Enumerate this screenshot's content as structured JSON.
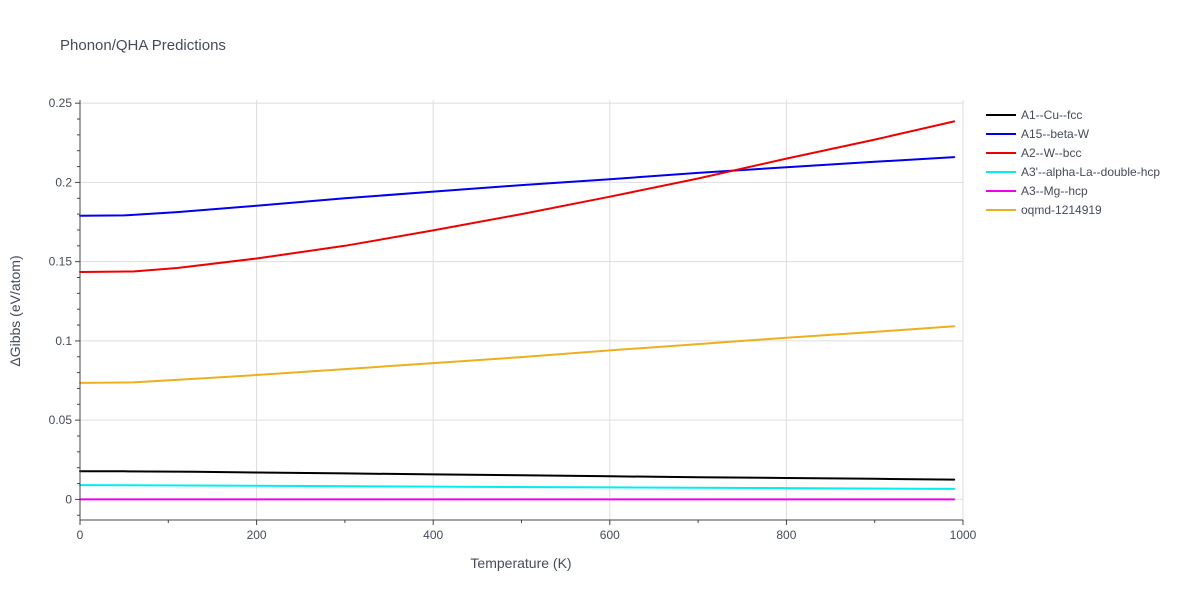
{
  "chart_data": {
    "type": "line",
    "title": "Phonon/QHA Predictions",
    "xlabel": "Temperature (K)",
    "ylabel": "ΔGibbs (eV/atom)",
    "xlim": [
      0,
      1000
    ],
    "ylim": [
      -0.013,
      0.252
    ],
    "x_ticks": [
      0,
      200,
      400,
      600,
      800,
      1000
    ],
    "x_tick_labels": [
      "0",
      "200",
      "400",
      "600",
      "800",
      "1000"
    ],
    "x_minor_ticks": [
      100,
      300,
      500,
      700,
      900
    ],
    "y_ticks": [
      0,
      0.05,
      0.1,
      0.15,
      0.2,
      0.25
    ],
    "y_tick_labels": [
      "0",
      "0.05",
      "0.1",
      "0.15",
      "0.2",
      "0.25"
    ],
    "y_minor_ticks": [
      -0.01,
      0.01,
      0.02,
      0.03,
      0.04,
      0.06,
      0.07,
      0.08,
      0.09,
      0.11,
      0.12,
      0.13,
      0.14,
      0.16,
      0.17,
      0.18,
      0.19,
      0.21,
      0.22,
      0.23,
      0.24
    ],
    "grid": true,
    "legend_position": "right",
    "series": [
      {
        "name": "A1--Cu--fcc",
        "color": "#000000",
        "x": [
          0,
          50,
          130,
          200,
          300,
          400,
          500,
          600,
          700,
          800,
          900,
          990
        ],
        "y": [
          0.0178,
          0.0177,
          0.0175,
          0.017,
          0.0164,
          0.0158,
          0.0152,
          0.0146,
          0.014,
          0.0135,
          0.013,
          0.0125
        ]
      },
      {
        "name": "A15--beta-W",
        "color": "#0000ee",
        "x": [
          0,
          50,
          110,
          200,
          300,
          400,
          500,
          600,
          700,
          800,
          900,
          990
        ],
        "y": [
          0.179,
          0.1792,
          0.1813,
          0.1853,
          0.19,
          0.1942,
          0.1983,
          0.202,
          0.206,
          0.2096,
          0.213,
          0.216
        ]
      },
      {
        "name": "A2--W--bcc",
        "color": "#ee0000",
        "x": [
          0,
          60,
          110,
          200,
          300,
          400,
          500,
          600,
          700,
          800,
          900,
          990
        ],
        "y": [
          0.1435,
          0.1438,
          0.146,
          0.152,
          0.16,
          0.1697,
          0.18,
          0.191,
          0.2025,
          0.215,
          0.227,
          0.2385
        ]
      },
      {
        "name": "A3'--alpha-La--double-hcp",
        "color": "#00eeee",
        "x": [
          0,
          200,
          400,
          600,
          800,
          990
        ],
        "y": [
          0.009,
          0.0086,
          0.0081,
          0.0076,
          0.0071,
          0.0066
        ]
      },
      {
        "name": "A3--Mg--hcp",
        "color": "#ee00ee",
        "x": [
          0,
          990
        ],
        "y": [
          0.0,
          0.0
        ]
      },
      {
        "name": "oqmd-1214919",
        "color": "#ecb01f",
        "x": [
          0,
          60,
          150,
          200,
          300,
          400,
          500,
          600,
          700,
          800,
          900,
          990
        ],
        "y": [
          0.0735,
          0.0738,
          0.0767,
          0.0785,
          0.0822,
          0.086,
          0.0898,
          0.094,
          0.098,
          0.102,
          0.1057,
          0.1093
        ]
      }
    ]
  }
}
